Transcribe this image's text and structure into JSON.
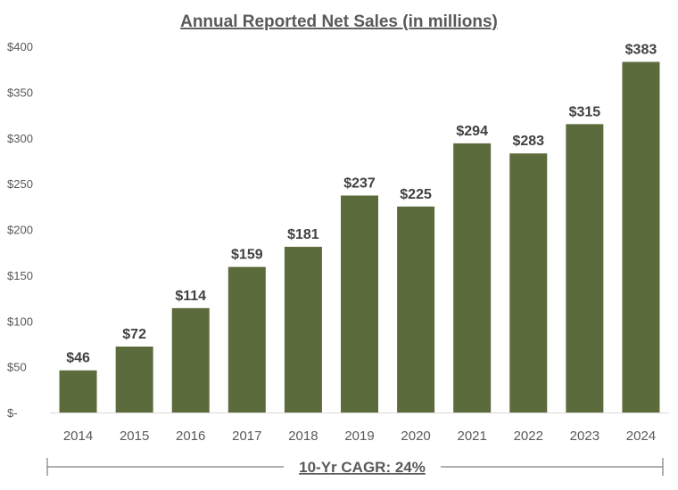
{
  "chart_data": {
    "type": "bar",
    "title": "Annual Reported Net Sales (in millions)",
    "categories": [
      "2014",
      "2015",
      "2016",
      "2017",
      "2018",
      "2019",
      "2020",
      "2021",
      "2022",
      "2023",
      "2024"
    ],
    "values": [
      46,
      72,
      114,
      159,
      181,
      237,
      225,
      294,
      283,
      315,
      383
    ],
    "data_labels": [
      "$46",
      "$72",
      "$114",
      "$159",
      "$181",
      "$237",
      "$225",
      "$294",
      "$283",
      "$315",
      "$383"
    ],
    "ylim": [
      0,
      400
    ],
    "y_ticks": [
      0,
      50,
      100,
      150,
      200,
      250,
      300,
      350,
      400
    ],
    "y_tick_labels": [
      "$-",
      "$50",
      "$100",
      "$150",
      "$200",
      "$250",
      "$300",
      "$350",
      "$400"
    ],
    "xlabel": "",
    "ylabel": "",
    "grid": false,
    "bar_color": "#5c6b3c",
    "annotation": "10-Yr CAGR: 24%"
  }
}
